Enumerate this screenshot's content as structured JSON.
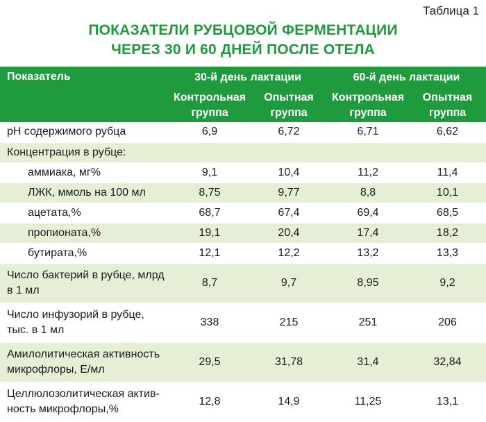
{
  "table_label": "Таблица 1",
  "title_line1": "ПОКАЗАТЕЛИ РУБЦОВОЙ ФЕРМЕНТАЦИИ",
  "title_line2": "ЧЕРЕЗ 30 И 60 ДНЕЙ ПОСЛЕ ОТЕЛА",
  "header": {
    "indicator": "Показатель",
    "period1": "30-й день лактации",
    "period2": "60-й день лактации",
    "control_l1": "Контрольная",
    "control_l2": "группа",
    "experimental_l1": "Опытная",
    "experimental_l2": "группа"
  },
  "rows": [
    {
      "name": "pH содержимого рубца",
      "values": [
        "6,9",
        "6,72",
        "6,71",
        "6,62"
      ]
    },
    {
      "name": "Концентрация в рубце:",
      "values": [
        "",
        "",
        "",
        ""
      ]
    },
    {
      "name": "аммиака, мг%",
      "values": [
        "9,1",
        "10,4",
        "11,2",
        "11,4"
      ]
    },
    {
      "name": "ЛЖК, ммоль на 100 мл",
      "values": [
        "8,75",
        "9,77",
        "8,8",
        "10,1"
      ]
    },
    {
      "name": "ацетата,%",
      "values": [
        "68,7",
        "67,4",
        "69,4",
        "68,5"
      ]
    },
    {
      "name": "пропионата,%",
      "values": [
        "19,1",
        "20,4",
        "17,4",
        "18,2"
      ]
    },
    {
      "name": "бутирата,%",
      "values": [
        "12,1",
        "12,2",
        "13,2",
        "13,3"
      ]
    },
    {
      "name_l1": "Число бактерий в рубце, млрд",
      "name_l2": "в 1 мл",
      "values": [
        "8,7",
        "9,7",
        "8,95",
        "9,2"
      ]
    },
    {
      "name_l1": "Число инфузорий в рубце,",
      "name_l2": "тыс. в 1 мл",
      "values": [
        "338",
        "215",
        "251",
        "206"
      ]
    },
    {
      "name_l1": "Амилолитическая активность",
      "name_l2": "микрофлоры, Е/мл",
      "values": [
        "29,5",
        "31,78",
        "31,4",
        "32,84"
      ]
    },
    {
      "name_l1": "Целлюлозолитическая актив-",
      "name_l2": "ность микрофлоры,%",
      "values": [
        "12,8",
        "14,9",
        "11,25",
        "13,1"
      ]
    }
  ]
}
